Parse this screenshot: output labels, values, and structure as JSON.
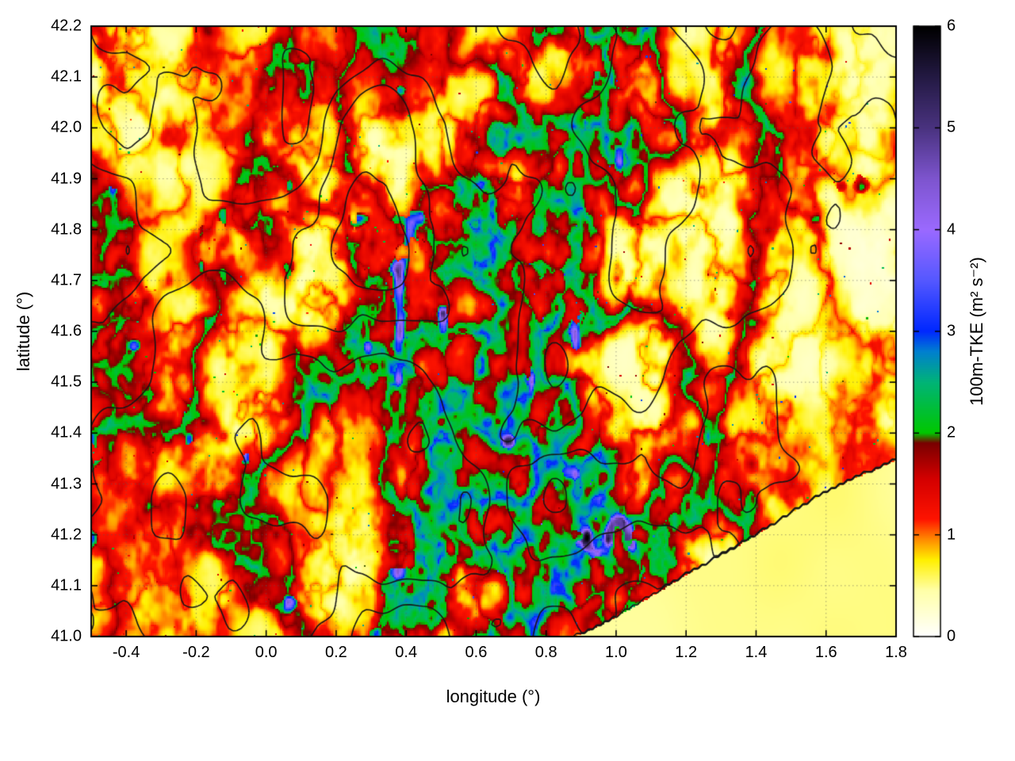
{
  "chart_data": {
    "type": "heatmap",
    "title": "",
    "xlabel": "longitude (°)",
    "ylabel": "latitude (°)",
    "xlim": [
      -0.5,
      1.8
    ],
    "ylim": [
      41.0,
      42.2
    ],
    "grid": "dotted",
    "x_ticks": [
      {
        "value": -0.4,
        "label": "-0.4"
      },
      {
        "value": -0.2,
        "label": "-0.2"
      },
      {
        "value": 0.0,
        "label": "0.0"
      },
      {
        "value": 0.2,
        "label": "0.2"
      },
      {
        "value": 0.4,
        "label": "0.4"
      },
      {
        "value": 0.6,
        "label": "0.6"
      },
      {
        "value": 0.8,
        "label": "0.8"
      },
      {
        "value": 1.0,
        "label": "1.0"
      },
      {
        "value": 1.2,
        "label": "1.2"
      },
      {
        "value": 1.4,
        "label": "1.4"
      },
      {
        "value": 1.6,
        "label": "1.6"
      },
      {
        "value": 1.8,
        "label": "1.8"
      }
    ],
    "y_ticks": [
      {
        "value": 41.0,
        "label": "41.0"
      },
      {
        "value": 41.1,
        "label": "41.1"
      },
      {
        "value": 41.2,
        "label": "41.2"
      },
      {
        "value": 41.3,
        "label": "41.3"
      },
      {
        "value": 41.4,
        "label": "41.4"
      },
      {
        "value": 41.5,
        "label": "41.5"
      },
      {
        "value": 41.6,
        "label": "41.6"
      },
      {
        "value": 41.7,
        "label": "41.7"
      },
      {
        "value": 41.8,
        "label": "41.8"
      },
      {
        "value": 41.9,
        "label": "41.9"
      },
      {
        "value": 42.0,
        "label": "42.0"
      },
      {
        "value": 42.1,
        "label": "42.1"
      },
      {
        "value": 42.2,
        "label": "42.2"
      }
    ],
    "colorbar": {
      "label": "100m-TKE (m² s⁻²)",
      "min": 0,
      "max": 6,
      "ticks": [
        {
          "value": 0,
          "label": "0"
        },
        {
          "value": 1,
          "label": "1"
        },
        {
          "value": 2,
          "label": "2"
        },
        {
          "value": 3,
          "label": "3"
        },
        {
          "value": 4,
          "label": "4"
        },
        {
          "value": 5,
          "label": "5"
        },
        {
          "value": 6,
          "label": "6"
        }
      ],
      "colormap": [
        [
          0.0,
          "#ffffff"
        ],
        [
          0.45,
          "#ffffa8"
        ],
        [
          0.75,
          "#fff000"
        ],
        [
          0.95,
          "#ff8c00"
        ],
        [
          1.15,
          "#ff1400"
        ],
        [
          1.55,
          "#d40000"
        ],
        [
          1.9,
          "#7a0000"
        ],
        [
          2.0,
          "#00c800"
        ],
        [
          2.5,
          "#00b478"
        ],
        [
          2.8,
          "#0080d0"
        ],
        [
          3.0,
          "#0028ff"
        ],
        [
          3.5,
          "#5558ff"
        ],
        [
          4.0,
          "#9b6aff"
        ],
        [
          4.5,
          "#7e55cf"
        ],
        [
          5.0,
          "#4a3380"
        ],
        [
          5.5,
          "#241a44"
        ],
        [
          6.0,
          "#000000"
        ]
      ]
    },
    "overlays": [
      {
        "type": "contour",
        "color": "#161616",
        "description": "terrain elevation contour lines over land and along the coastline"
      }
    ],
    "field": {
      "name": "100 m turbulent kinetic energy",
      "units": "m² s⁻²",
      "description": "Mostly pale-yellow background (0.2–0.8) with filamentary high-TKE ridges (1–2) over complex terrain; localized green/blue/violet cores reach 2–4.5; smooth uniform low values (~0.4–0.5) over the sea in the lower-right corner; palest, quietest values toward the eastern edge."
    }
  }
}
